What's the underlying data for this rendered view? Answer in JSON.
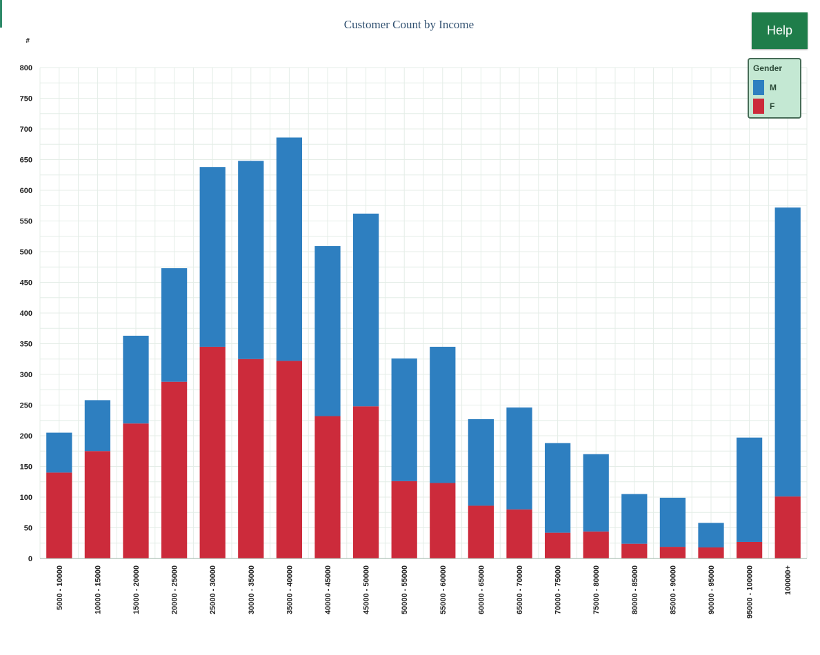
{
  "help_label": "Help",
  "chart_data": {
    "type": "bar",
    "stacked": true,
    "title": "Customer Count by Income",
    "ylabel": "#",
    "xlabel": "",
    "ylim": [
      0,
      800
    ],
    "yticks": [
      0,
      50,
      100,
      150,
      200,
      250,
      300,
      350,
      400,
      450,
      500,
      550,
      600,
      650,
      700,
      750,
      800
    ],
    "grid": true,
    "legend": {
      "title": "Gender",
      "placement": "top-right",
      "entries": [
        {
          "label": "M",
          "color": "#2e7fc0"
        },
        {
          "label": "F",
          "color": "#cc2b3b"
        }
      ]
    },
    "categories": [
      "5000 - 10000",
      "10000 - 15000",
      "15000 - 20000",
      "20000 - 25000",
      "25000 - 30000",
      "30000 - 35000",
      "35000 - 40000",
      "40000 - 45000",
      "45000 - 50000",
      "50000 - 55000",
      "55000 - 60000",
      "60000 - 65000",
      "65000 - 70000",
      "70000 - 75000",
      "75000 - 80000",
      "80000 - 85000",
      "85000 - 90000",
      "90000 - 95000",
      "95000 - 100000",
      "100000+"
    ],
    "series": [
      {
        "name": "F",
        "color": "#cc2b3b",
        "values": [
          140,
          175,
          220,
          288,
          345,
          325,
          322,
          232,
          248,
          126,
          123,
          86,
          80,
          42,
          44,
          24,
          19,
          18,
          27,
          101
        ]
      },
      {
        "name": "M",
        "color": "#2e7fc0",
        "values": [
          65,
          83,
          143,
          185,
          293,
          323,
          364,
          277,
          314,
          200,
          222,
          141,
          166,
          146,
          126,
          81,
          80,
          40,
          170,
          471
        ]
      }
    ]
  }
}
